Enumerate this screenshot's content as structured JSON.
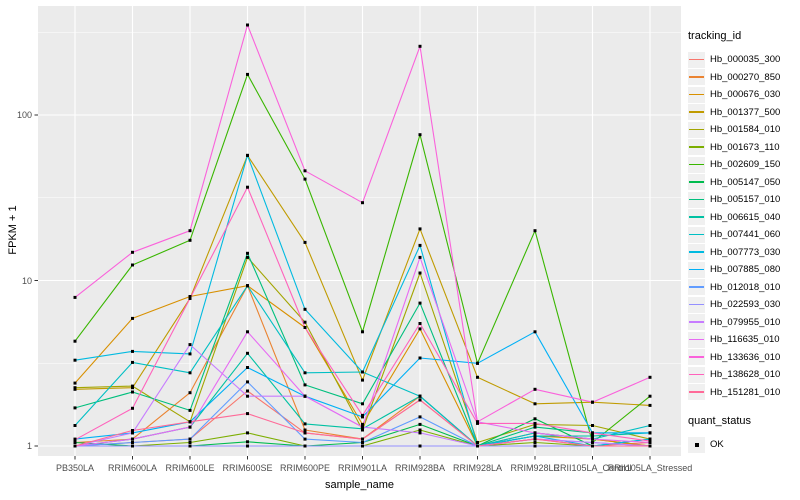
{
  "chart_data": {
    "type": "line",
    "title": "",
    "xlabel": "sample_name",
    "ylabel": "FPKM + 1",
    "x_categories": [
      "PB350LA",
      "RRIM600LA",
      "RRIM600LE",
      "RRIM600SE",
      "RRIM600PE",
      "RRIM901LA",
      "RRIM928BA",
      "RRIM928LA",
      "RRIM928LE",
      "RRII105LA_Control",
      "RRII105LA_Stressed"
    ],
    "y_axis": {
      "scale": "log10",
      "ticks": [
        1,
        10,
        100
      ],
      "minor_ticks": [
        3.1623,
        31.623,
        316.23
      ],
      "range": [
        0.9,
        430
      ]
    },
    "grid": "on",
    "legend_position": "right",
    "legend": {
      "tracking_title": "tracking_id",
      "quant_title": "quant_status",
      "quant_items": [
        "OK"
      ]
    },
    "series": [
      {
        "tracking_id": "Hb_000035_300",
        "color": "#F8766D",
        "quant_status": "OK",
        "values": [
          1.0,
          1.05,
          1.1,
          2.15,
          1.2,
          1.1,
          1.9,
          1.0,
          1.1,
          1.0,
          1.05
        ]
      },
      {
        "tracking_id": "Hb_000270_850",
        "color": "#EA8331",
        "quant_status": "OK",
        "values": [
          1.05,
          1.1,
          2.1,
          9.3,
          1.25,
          1.1,
          2.0,
          1.0,
          1.2,
          1.1,
          1.0
        ]
      },
      {
        "tracking_id": "Hb_000676_030",
        "color": "#D89000",
        "quant_status": "OK",
        "values": [
          2.4,
          5.9,
          8.0,
          9.3,
          5.2,
          1.35,
          5.1,
          1.0,
          1.15,
          1.1,
          1.0
        ]
      },
      {
        "tracking_id": "Hb_001377_500",
        "color": "#C09B00",
        "quant_status": "OK",
        "values": [
          2.2,
          2.25,
          7.8,
          57,
          17,
          2.5,
          20.5,
          2.6,
          1.8,
          1.84,
          1.76
        ]
      },
      {
        "tracking_id": "Hb_001584_010",
        "color": "#A3A500",
        "quant_status": "OK",
        "values": [
          2.25,
          2.3,
          1.4,
          13.8,
          5.6,
          1.25,
          11.1,
          1.05,
          1.35,
          1.33,
          1.1
        ]
      },
      {
        "tracking_id": "Hb_001673_110",
        "color": "#7CAE00",
        "quant_status": "OK",
        "values": [
          1.0,
          1.0,
          1.05,
          1.2,
          1.0,
          1.0,
          1.25,
          1.0,
          1.05,
          1.0,
          1.0
        ]
      },
      {
        "tracking_id": "Hb_002609_150",
        "color": "#39B600",
        "quant_status": "OK",
        "values": [
          4.3,
          12.4,
          17.5,
          176,
          41,
          4.9,
          76,
          3.16,
          20,
          1.05,
          2.0
        ]
      },
      {
        "tracking_id": "Hb_005147_050",
        "color": "#00BB4E",
        "quant_status": "OK",
        "values": [
          1.05,
          1.0,
          1.0,
          1.06,
          1.0,
          1.05,
          1.35,
          1.0,
          1.46,
          1.0,
          1.1
        ]
      },
      {
        "tracking_id": "Hb_005157_010",
        "color": "#00BF7D",
        "quant_status": "OK",
        "values": [
          1.7,
          2.12,
          1.64,
          14.6,
          2.34,
          1.8,
          7.3,
          1.0,
          1.3,
          1.2,
          1.2
        ]
      },
      {
        "tracking_id": "Hb_006615_040",
        "color": "#00C1A3",
        "quant_status": "OK",
        "values": [
          1.0,
          1.1,
          1.3,
          3.63,
          1.36,
          1.27,
          2.0,
          1.0,
          1.15,
          1.15,
          1.2
        ]
      },
      {
        "tracking_id": "Hb_007441_060",
        "color": "#00BFC4",
        "quant_status": "OK",
        "values": [
          1.33,
          3.2,
          2.77,
          9.3,
          2.77,
          2.8,
          2.0,
          1.0,
          1.2,
          1.1,
          1.33
        ]
      },
      {
        "tracking_id": "Hb_007773_030",
        "color": "#00BAE0",
        "quant_status": "OK",
        "values": [
          3.3,
          3.73,
          3.6,
          57,
          6.7,
          2.8,
          16.3,
          1.0,
          1.15,
          1.0,
          1.1
        ]
      },
      {
        "tracking_id": "Hb_007885_080",
        "color": "#00B0F6",
        "quant_status": "OK",
        "values": [
          1.1,
          1.2,
          1.4,
          2.98,
          2.0,
          1.5,
          3.4,
          3.16,
          4.9,
          1.2,
          1.2
        ]
      },
      {
        "tracking_id": "Hb_012018_010",
        "color": "#619CFF",
        "quant_status": "OK",
        "values": [
          1.0,
          1.05,
          1.1,
          2.44,
          1.1,
          1.05,
          1.5,
          1.0,
          1.1,
          1.05,
          1.0
        ]
      },
      {
        "tracking_id": "Hb_022593_030",
        "color": "#9590FF",
        "quant_status": "OK",
        "values": [
          1.0,
          1.0,
          1.0,
          1.0,
          1.0,
          1.0,
          1.0,
          1.0,
          1.0,
          1.0,
          1.0
        ]
      },
      {
        "tracking_id": "Hb_079955_010",
        "color": "#C77CFF",
        "quant_status": "OK",
        "values": [
          1.0,
          1.2,
          4.1,
          2.0,
          2.0,
          1.3,
          1.2,
          1.0,
          1.1,
          1.05,
          1.0
        ]
      },
      {
        "tracking_id": "Hb_116635_010",
        "color": "#E76BF3",
        "quant_status": "OK",
        "values": [
          1.0,
          1.1,
          1.3,
          4.9,
          2.0,
          1.3,
          13.8,
          1.4,
          1.2,
          1.1,
          1.05
        ]
      },
      {
        "tracking_id": "Hb_133636_010",
        "color": "#FA62DB",
        "quant_status": "OK",
        "values": [
          7.9,
          14.8,
          20,
          350,
          46,
          29.5,
          260,
          1.4,
          2.2,
          1.84,
          2.6
        ]
      },
      {
        "tracking_id": "Hb_138628_010",
        "color": "#FF62BC",
        "quant_status": "OK",
        "values": [
          1.09,
          1.69,
          7.8,
          36.6,
          5.2,
          1.53,
          5.5,
          1.37,
          1.37,
          1.2,
          1.07
        ]
      },
      {
        "tracking_id": "Hb_151281_010",
        "color": "#FF6A98",
        "quant_status": "OK",
        "values": [
          1.0,
          1.24,
          1.4,
          1.57,
          1.2,
          1.1,
          1.9,
          1.0,
          1.1,
          1.0,
          1.0
        ]
      }
    ]
  },
  "colors": {
    "panel_bg": "#EBEBEB",
    "grid": "#FFFFFF",
    "tick_mark": "#333333",
    "tick_label": "#4D4D4D",
    "point": "#000000",
    "legend_key_bg": "#F0F0F0"
  }
}
